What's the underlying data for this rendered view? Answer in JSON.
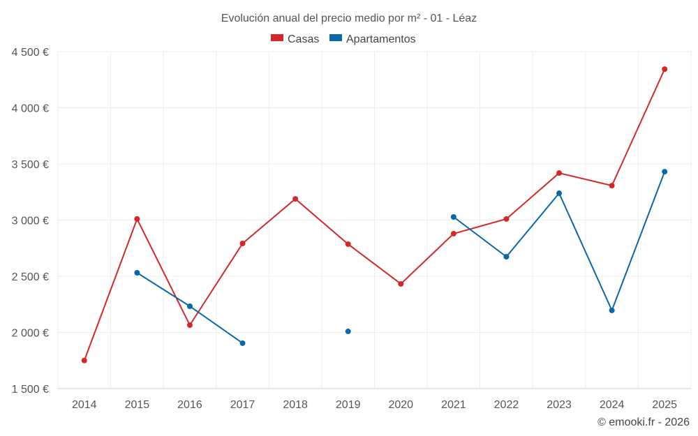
{
  "chart_data": {
    "type": "line",
    "title": "Evolución anual del precio medio por m² - 01 - Léaz",
    "x": [
      "2014",
      "2015",
      "2016",
      "2017",
      "2018",
      "2019",
      "2020",
      "2021",
      "2022",
      "2023",
      "2024",
      "2025"
    ],
    "ylim": [
      1500,
      4500
    ],
    "yticks": [
      1500,
      2000,
      2500,
      3000,
      3500,
      4000,
      4500
    ],
    "ytick_labels": [
      "1 500 €",
      "2 000 €",
      "2 500 €",
      "3 000 €",
      "3 500 €",
      "4 000 €",
      "4 500 €"
    ],
    "grid": true,
    "legend_position": "top-center",
    "series": [
      {
        "name": "Casas",
        "color": "#d62728",
        "values": [
          1750,
          3010,
          2065,
          2792,
          3189,
          2786,
          2432,
          2879,
          3010,
          3419,
          3307,
          4344
        ]
      },
      {
        "name": "Apartamentos",
        "color": "#0868a8",
        "values": [
          null,
          2531,
          2233,
          1904,
          null,
          2009,
          null,
          3028,
          2674,
          3239,
          2196,
          3431
        ]
      }
    ]
  },
  "credit": "© emooki.fr - 2026"
}
